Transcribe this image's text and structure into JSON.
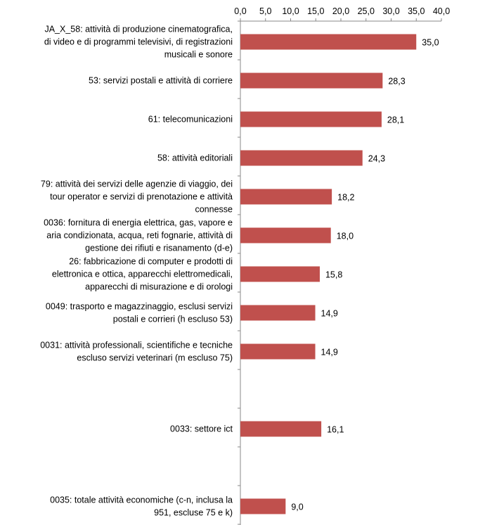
{
  "chart_data": {
    "type": "bar",
    "orientation": "horizontal",
    "title": "",
    "xlabel": "",
    "ylabel": "",
    "xlim": [
      0,
      40
    ],
    "ticks": [
      "0,0",
      "5,0",
      "10,0",
      "15,0",
      "20,0",
      "25,0",
      "30,0",
      "35,0",
      "40,0"
    ],
    "axis_position": "top",
    "grid": false,
    "legend": "none",
    "bar_color": "#c0504d",
    "categories": [
      {
        "label": [
          "JA_X_58: attività di produzione cinematografica,",
          "di video e di programmi televisivi, di registrazioni",
          "musicali e sonore"
        ],
        "value": 35.0,
        "value_label": "35,0"
      },
      {
        "label": [
          "53: servizi postali e attività di corriere"
        ],
        "value": 28.3,
        "value_label": "28,3"
      },
      {
        "label": [
          "61: telecomunicazioni"
        ],
        "value": 28.1,
        "value_label": "28,1"
      },
      {
        "label": [
          "58: attività editoriali"
        ],
        "value": 24.3,
        "value_label": "24,3"
      },
      {
        "label": [
          "79: attività dei servizi delle agenzie di viaggio, dei",
          "tour operator e servizi di prenotazione e attività",
          "connesse"
        ],
        "value": 18.2,
        "value_label": "18,2"
      },
      {
        "label": [
          "0036: fornitura di energia elettrica, gas, vapore e",
          "aria condizionata, acqua, reti fognarie, attività di",
          "gestione dei rifiuti e risanamento (d-e)"
        ],
        "value": 18.0,
        "value_label": "18,0"
      },
      {
        "label": [
          "26: fabbricazione di computer e prodotti di",
          "elettronica e ottica, apparecchi elettromedicali,",
          "apparecchi di misurazione e di orologi"
        ],
        "value": 15.8,
        "value_label": "15,8"
      },
      {
        "label": [
          "0049: trasporto e magazzinaggio, esclusi servizi",
          "postali e corrieri (h escluso 53)"
        ],
        "value": 14.9,
        "value_label": "14,9"
      },
      {
        "label": [
          "0031: attività professionali, scientifiche e tecniche",
          "escluso servizi veterinari (m escluso 75)"
        ],
        "value": 14.9,
        "value_label": "14,9"
      },
      {
        "label": [],
        "value": null,
        "value_label": ""
      },
      {
        "label": [
          "0033: settore ict"
        ],
        "value": 16.1,
        "value_label": "16,1"
      },
      {
        "label": [],
        "value": null,
        "value_label": ""
      },
      {
        "label": [
          "0035: totale attività economiche (c-n, inclusa la",
          "951, escluse 75 e k)"
        ],
        "value": 9.0,
        "value_label": "9,0"
      }
    ]
  }
}
